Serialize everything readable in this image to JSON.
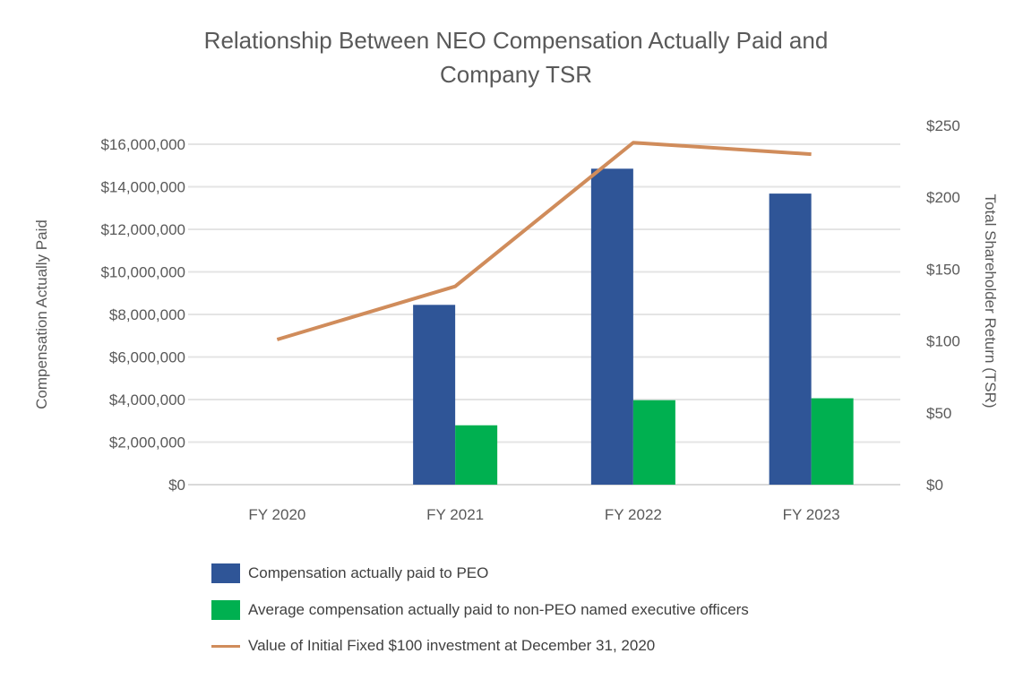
{
  "chart_data": {
    "type": "bar+line",
    "title": "Relationship Between NEO Compensation Actually Paid and Company TSR",
    "categories": [
      "FY 2020",
      "FY 2021",
      "FY 2022",
      "FY 2023"
    ],
    "ylabel": "Compensation Actually Paid",
    "y2label": "Total Shareholder Return (TSR)",
    "ylim": [
      0,
      16000000
    ],
    "y2lim": [
      0,
      250
    ],
    "yticks": [
      "$0",
      "$2,000,000",
      "$4,000,000",
      "$6,000,000",
      "$8,000,000",
      "$10,000,000",
      "$12,000,000",
      "$14,000,000",
      "$16,000,000"
    ],
    "y2ticks": [
      "$0",
      "$50",
      "$100",
      "$150",
      "$200",
      "$250"
    ],
    "grid": true,
    "legend_placement": "bottom",
    "series": [
      {
        "name": "Compensation actually paid to PEO",
        "type": "bar",
        "axis": "left",
        "color": "#2f5597",
        "values": [
          null,
          8450000,
          14850000,
          13680000
        ]
      },
      {
        "name": "Average compensation actually paid to non-PEO named executive officers",
        "type": "bar",
        "axis": "left",
        "color": "#00b050",
        "values": [
          null,
          2790000,
          3970000,
          4060000
        ]
      },
      {
        "name": "Value of Initial Fixed $100 investment at December 31, 2020",
        "type": "line",
        "axis": "right",
        "color": "#d08c5b",
        "values": [
          101,
          138,
          238,
          230
        ]
      }
    ]
  }
}
